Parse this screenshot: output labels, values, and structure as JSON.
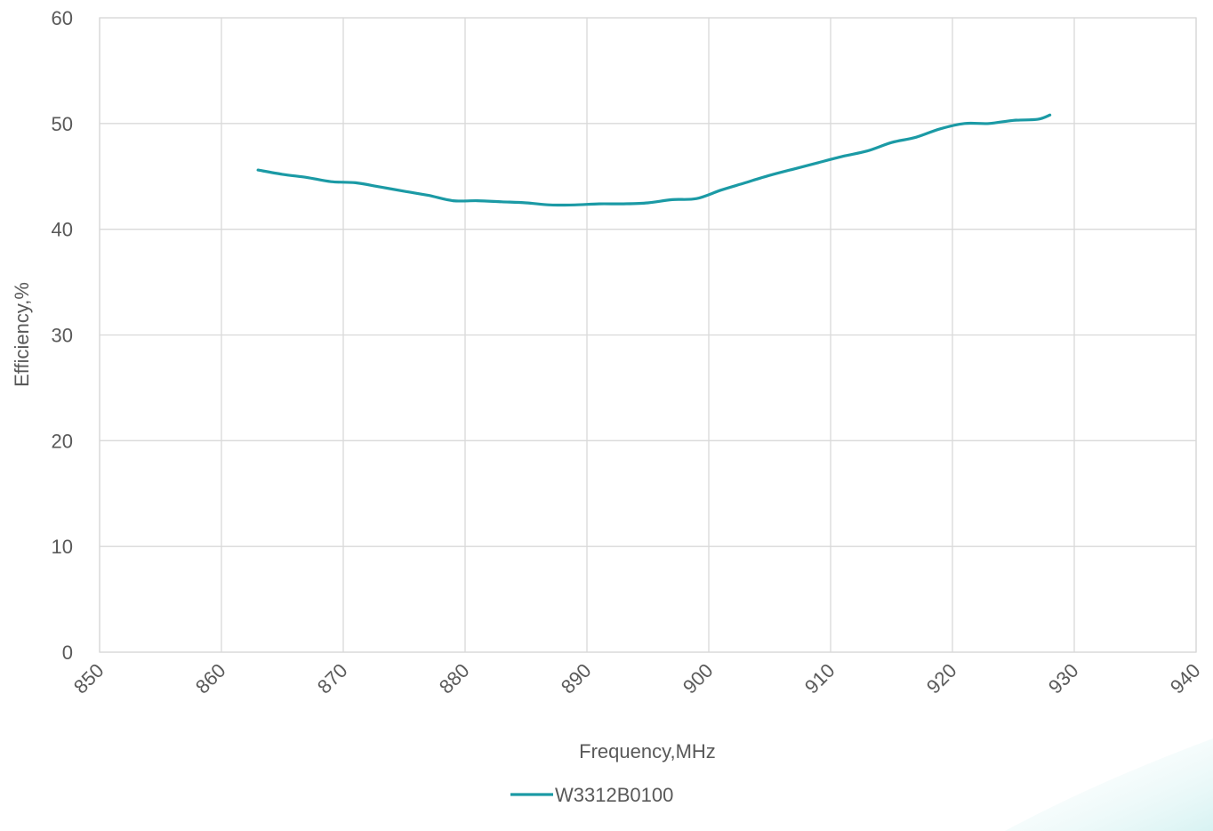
{
  "chart_data": {
    "type": "line",
    "title": "",
    "xlabel": "Frequency,MHz",
    "ylabel": "Efficiency,%",
    "xlim": [
      850,
      940
    ],
    "ylim": [
      0,
      60
    ],
    "x_ticks": [
      850,
      860,
      870,
      880,
      890,
      900,
      910,
      920,
      930,
      940
    ],
    "y_ticks": [
      0,
      10,
      20,
      30,
      40,
      50,
      60
    ],
    "grid": true,
    "legend_position": "bottom",
    "series": [
      {
        "name": "W3312B0100",
        "color": "#1b9aa5",
        "x": [
          863,
          865,
          867,
          869,
          871,
          873,
          875,
          877,
          879,
          881,
          883,
          885,
          887,
          889,
          891,
          893,
          895,
          897,
          899,
          901,
          903,
          905,
          907,
          909,
          911,
          913,
          915,
          917,
          919,
          921,
          923,
          925,
          927,
          928
        ],
        "y": [
          45.6,
          45.2,
          44.9,
          44.5,
          44.4,
          44.0,
          43.6,
          43.2,
          42.7,
          42.7,
          42.6,
          42.5,
          42.3,
          42.3,
          42.4,
          42.4,
          42.5,
          42.8,
          42.9,
          43.7,
          44.4,
          45.1,
          45.7,
          46.3,
          46.9,
          47.4,
          48.2,
          48.7,
          49.5,
          50.0,
          50.0,
          50.3,
          50.4,
          50.8
        ]
      }
    ]
  }
}
